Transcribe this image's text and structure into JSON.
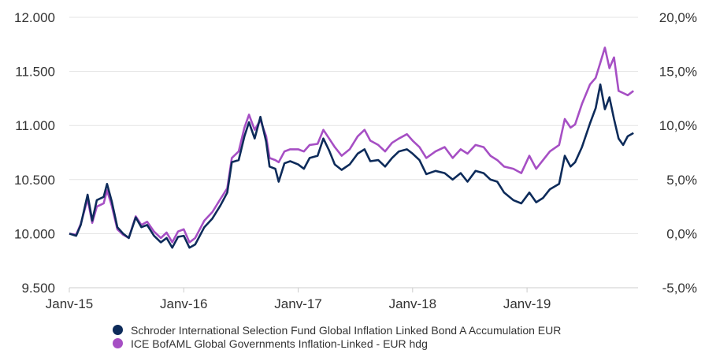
{
  "chart_data": {
    "type": "line",
    "title": "",
    "xlabel": "",
    "ylabel": "",
    "ylim": [
      9500,
      12000
    ],
    "yticks": [
      "9.500",
      "10.000",
      "10.500",
      "11.000",
      "11.500",
      "12.000"
    ],
    "ylim_right": [
      -5,
      20
    ],
    "yticks_right": [
      "-5,0%",
      "0,0%",
      "5,0%",
      "10,0%",
      "15,0%",
      "20,0%"
    ],
    "xticks": [
      "Janv-15",
      "Janv-16",
      "Janv-17",
      "Janv-18",
      "Janv-19"
    ],
    "xlim": [
      2015.0,
      2019.97
    ],
    "grid": "horizontal",
    "legend_position": "bottom",
    "series": [
      {
        "name": "Schroder International Selection Fund Global Inflation Linked Bond A Accumulation EUR",
        "color": "#0d2b5a",
        "points": [
          [
            2015.0,
            10000
          ],
          [
            2015.06,
            9980
          ],
          [
            2015.1,
            10080
          ],
          [
            2015.16,
            10360
          ],
          [
            2015.2,
            10120
          ],
          [
            2015.24,
            10310
          ],
          [
            2015.3,
            10340
          ],
          [
            2015.33,
            10460
          ],
          [
            2015.37,
            10300
          ],
          [
            2015.42,
            10060
          ],
          [
            2015.47,
            10000
          ],
          [
            2015.52,
            9960
          ],
          [
            2015.58,
            10150
          ],
          [
            2015.63,
            10060
          ],
          [
            2015.68,
            10080
          ],
          [
            2015.74,
            9980
          ],
          [
            2015.8,
            9920
          ],
          [
            2015.85,
            9960
          ],
          [
            2015.9,
            9870
          ],
          [
            2015.95,
            9970
          ],
          [
            2016.0,
            9980
          ],
          [
            2016.05,
            9870
          ],
          [
            2016.1,
            9900
          ],
          [
            2016.18,
            10060
          ],
          [
            2016.25,
            10140
          ],
          [
            2016.32,
            10260
          ],
          [
            2016.38,
            10380
          ],
          [
            2016.42,
            10660
          ],
          [
            2016.48,
            10680
          ],
          [
            2016.53,
            10900
          ],
          [
            2016.57,
            11030
          ],
          [
            2016.62,
            10880
          ],
          [
            2016.67,
            11080
          ],
          [
            2016.72,
            10850
          ],
          [
            2016.75,
            10620
          ],
          [
            2016.8,
            10600
          ],
          [
            2016.83,
            10480
          ],
          [
            2016.88,
            10650
          ],
          [
            2016.93,
            10670
          ],
          [
            2017.0,
            10640
          ],
          [
            2017.05,
            10600
          ],
          [
            2017.1,
            10700
          ],
          [
            2017.17,
            10720
          ],
          [
            2017.22,
            10880
          ],
          [
            2017.27,
            10770
          ],
          [
            2017.32,
            10640
          ],
          [
            2017.38,
            10590
          ],
          [
            2017.45,
            10640
          ],
          [
            2017.52,
            10740
          ],
          [
            2017.58,
            10780
          ],
          [
            2017.63,
            10670
          ],
          [
            2017.7,
            10680
          ],
          [
            2017.76,
            10620
          ],
          [
            2017.82,
            10700
          ],
          [
            2017.88,
            10760
          ],
          [
            2017.95,
            10780
          ],
          [
            2018.0,
            10740
          ],
          [
            2018.06,
            10680
          ],
          [
            2018.12,
            10550
          ],
          [
            2018.2,
            10580
          ],
          [
            2018.28,
            10560
          ],
          [
            2018.35,
            10500
          ],
          [
            2018.42,
            10560
          ],
          [
            2018.48,
            10480
          ],
          [
            2018.55,
            10580
          ],
          [
            2018.62,
            10560
          ],
          [
            2018.68,
            10500
          ],
          [
            2018.74,
            10480
          ],
          [
            2018.8,
            10380
          ],
          [
            2018.88,
            10310
          ],
          [
            2018.95,
            10280
          ],
          [
            2019.02,
            10380
          ],
          [
            2019.08,
            10290
          ],
          [
            2019.14,
            10330
          ],
          [
            2019.2,
            10410
          ],
          [
            2019.28,
            10460
          ],
          [
            2019.33,
            10720
          ],
          [
            2019.38,
            10620
          ],
          [
            2019.42,
            10660
          ],
          [
            2019.48,
            10800
          ],
          [
            2019.55,
            11020
          ],
          [
            2019.6,
            11160
          ],
          [
            2019.64,
            11380
          ],
          [
            2019.68,
            11150
          ],
          [
            2019.72,
            11260
          ],
          [
            2019.76,
            11060
          ],
          [
            2019.8,
            10880
          ],
          [
            2019.84,
            10820
          ],
          [
            2019.88,
            10900
          ],
          [
            2019.93,
            10930
          ]
        ]
      },
      {
        "name": "ICE BofAML Global Governments Inflation-Linked - EUR hdg",
        "color": "#a64fc4",
        "points": [
          [
            2015.0,
            10000
          ],
          [
            2015.06,
            9990
          ],
          [
            2015.1,
            10090
          ],
          [
            2015.16,
            10320
          ],
          [
            2015.2,
            10100
          ],
          [
            2015.24,
            10250
          ],
          [
            2015.3,
            10280
          ],
          [
            2015.33,
            10400
          ],
          [
            2015.37,
            10260
          ],
          [
            2015.42,
            10040
          ],
          [
            2015.47,
            9990
          ],
          [
            2015.52,
            9960
          ],
          [
            2015.58,
            10160
          ],
          [
            2015.63,
            10080
          ],
          [
            2015.68,
            10110
          ],
          [
            2015.74,
            10020
          ],
          [
            2015.8,
            9960
          ],
          [
            2015.85,
            10010
          ],
          [
            2015.9,
            9920
          ],
          [
            2015.95,
            10020
          ],
          [
            2016.0,
            10040
          ],
          [
            2016.05,
            9920
          ],
          [
            2016.1,
            9960
          ],
          [
            2016.18,
            10120
          ],
          [
            2016.25,
            10200
          ],
          [
            2016.32,
            10320
          ],
          [
            2016.38,
            10420
          ],
          [
            2016.42,
            10700
          ],
          [
            2016.48,
            10760
          ],
          [
            2016.53,
            10980
          ],
          [
            2016.57,
            11100
          ],
          [
            2016.62,
            10960
          ],
          [
            2016.67,
            11050
          ],
          [
            2016.72,
            10900
          ],
          [
            2016.75,
            10700
          ],
          [
            2016.8,
            10680
          ],
          [
            2016.83,
            10660
          ],
          [
            2016.88,
            10760
          ],
          [
            2016.93,
            10780
          ],
          [
            2017.0,
            10780
          ],
          [
            2017.05,
            10760
          ],
          [
            2017.1,
            10820
          ],
          [
            2017.17,
            10830
          ],
          [
            2017.22,
            10960
          ],
          [
            2017.27,
            10880
          ],
          [
            2017.32,
            10800
          ],
          [
            2017.38,
            10720
          ],
          [
            2017.45,
            10780
          ],
          [
            2017.52,
            10900
          ],
          [
            2017.58,
            10960
          ],
          [
            2017.63,
            10860
          ],
          [
            2017.7,
            10820
          ],
          [
            2017.76,
            10760
          ],
          [
            2017.82,
            10840
          ],
          [
            2017.88,
            10880
          ],
          [
            2017.95,
            10920
          ],
          [
            2018.0,
            10860
          ],
          [
            2018.06,
            10800
          ],
          [
            2018.12,
            10700
          ],
          [
            2018.2,
            10760
          ],
          [
            2018.28,
            10800
          ],
          [
            2018.35,
            10700
          ],
          [
            2018.42,
            10780
          ],
          [
            2018.48,
            10740
          ],
          [
            2018.55,
            10820
          ],
          [
            2018.62,
            10800
          ],
          [
            2018.68,
            10720
          ],
          [
            2018.74,
            10680
          ],
          [
            2018.8,
            10620
          ],
          [
            2018.88,
            10600
          ],
          [
            2018.95,
            10560
          ],
          [
            2019.02,
            10720
          ],
          [
            2019.08,
            10600
          ],
          [
            2019.14,
            10680
          ],
          [
            2019.2,
            10760
          ],
          [
            2019.28,
            10820
          ],
          [
            2019.33,
            11060
          ],
          [
            2019.38,
            10980
          ],
          [
            2019.42,
            11010
          ],
          [
            2019.48,
            11200
          ],
          [
            2019.55,
            11380
          ],
          [
            2019.6,
            11440
          ],
          [
            2019.64,
            11580
          ],
          [
            2019.68,
            11720
          ],
          [
            2019.72,
            11530
          ],
          [
            2019.76,
            11630
          ],
          [
            2019.8,
            11320
          ],
          [
            2019.84,
            11300
          ],
          [
            2019.88,
            11280
          ],
          [
            2019.93,
            11320
          ]
        ]
      }
    ]
  }
}
